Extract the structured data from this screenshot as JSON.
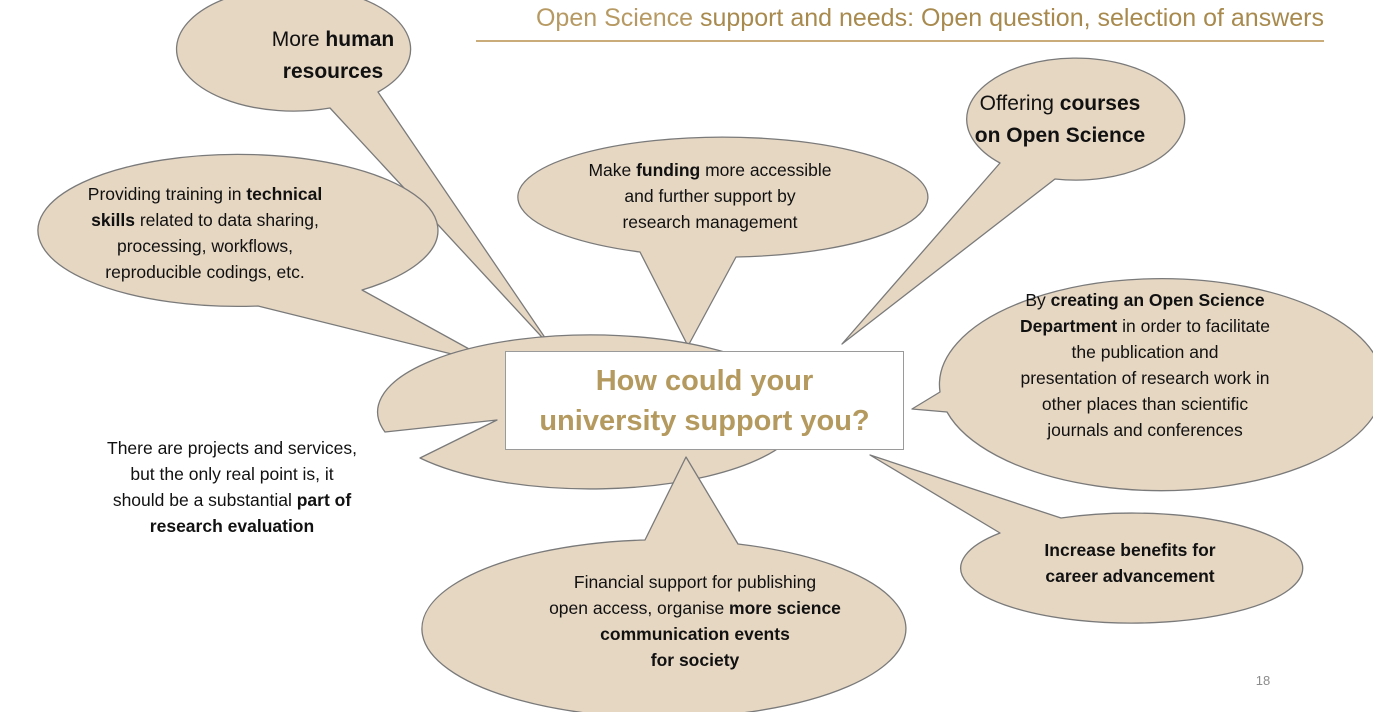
{
  "title": {
    "part1": "Open Science",
    "part2": "support and needs:  Open question, selection of answers"
  },
  "center": {
    "line1": "How could your",
    "line2": "university support you?"
  },
  "bubbles": {
    "human_resources": {
      "l1a": "More ",
      "l1b": "human",
      "l2": "resources"
    },
    "courses": {
      "l1a": "Offering ",
      "l1b": "courses",
      "l2": "on Open Science"
    },
    "funding": {
      "l1a": "Make ",
      "l1b": "funding",
      "l1c": " more accessible",
      "l2": "and further support by",
      "l3": "research management"
    },
    "training": {
      "l1a": "Providing training in ",
      "l1b": "technical",
      "l2a": "skills",
      "l2b": " related to data sharing,",
      "l3": "processing, workflows,",
      "l4": "reproducible codings, etc."
    },
    "department": {
      "l1a": "By ",
      "l1b": "creating an Open Science",
      "l2a": "Department",
      "l2b": " in order to facilitate",
      "l3": "the publication and",
      "l4": "presentation of research work in",
      "l5": "other places than scientific",
      "l6": "journals and conferences"
    },
    "evaluation": {
      "l1": "There are projects and services,",
      "l2": "but the only real point is, it",
      "l3a": "should be a substantial ",
      "l3b": "part of",
      "l4": "research evaluation"
    },
    "benefits": {
      "l1": "Increase benefits for",
      "l2": "career advancement"
    },
    "financial": {
      "l1": "Financial support for publishing",
      "l2a": "open access, organise ",
      "l2b": "more science",
      "l3": "communication events",
      "l4": "for society"
    }
  },
  "page_number": "18",
  "colors": {
    "bubble_fill": "#e6d7c3",
    "bubble_stroke": "#7a7a7a",
    "accent_gold": "#b59a5f",
    "title_rule": "#c9ac7a"
  }
}
